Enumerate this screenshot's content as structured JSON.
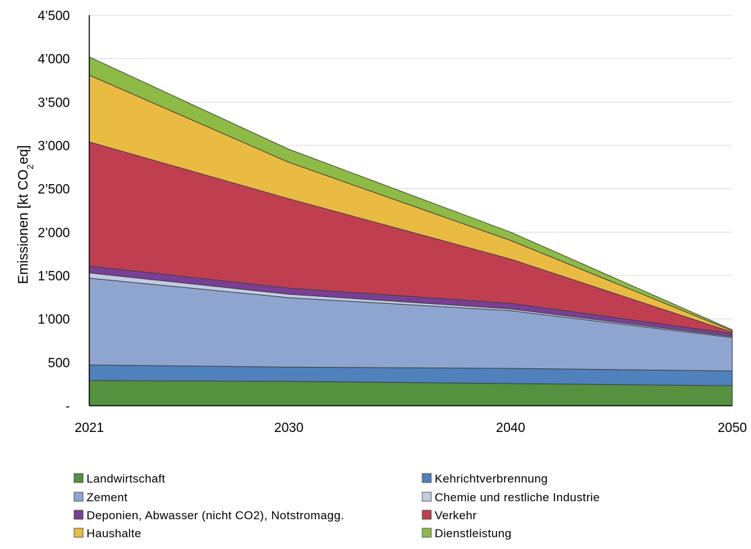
{
  "chart_data": {
    "type": "area",
    "stacked": true,
    "x": [
      2021,
      2030,
      2040,
      2050
    ],
    "x_tick_labels": [
      "2021",
      "2030",
      "2040",
      "2050"
    ],
    "y_tick_labels": [
      "-",
      "500",
      "1’000",
      "1’500",
      "2’000",
      "2’500",
      "3’000",
      "3’500",
      "4’000",
      "4’500"
    ],
    "ylabel_main": "Emissionen [kt CO",
    "ylabel_sub": "2",
    "ylabel_end": "eq]",
    "xlabel": "",
    "ylim": [
      0,
      4500
    ],
    "grid": "horizontal",
    "legend_position": "bottom",
    "series": [
      {
        "name": "Landwirtschaft",
        "color": "#55913F",
        "values": [
          290,
          280,
          255,
          230
        ]
      },
      {
        "name": "Kehrichtverbrennung",
        "color": "#4F81BD",
        "values": [
          180,
          165,
          175,
          170
        ]
      },
      {
        "name": "Zement",
        "color": "#8EA5CF",
        "values": [
          1000,
          800,
          665,
          385
        ]
      },
      {
        "name": "Chemie und restliche Industrie",
        "color": "#C3CCE5",
        "values": [
          60,
          40,
          20,
          12
        ]
      },
      {
        "name": "Deponien, Abwasser (nicht CO2), Notstromagg.",
        "color": "#7A3E96",
        "values": [
          80,
          70,
          65,
          35
        ]
      },
      {
        "name": "Verkehr",
        "color": "#BF3F51",
        "values": [
          1430,
          1030,
          510,
          15
        ]
      },
      {
        "name": "Haushalte",
        "color": "#EABB43",
        "values": [
          770,
          420,
          215,
          15
        ]
      },
      {
        "name": "Dienstleistung",
        "color": "#8DBB45",
        "values": [
          210,
          150,
          95,
          12
        ]
      }
    ]
  }
}
